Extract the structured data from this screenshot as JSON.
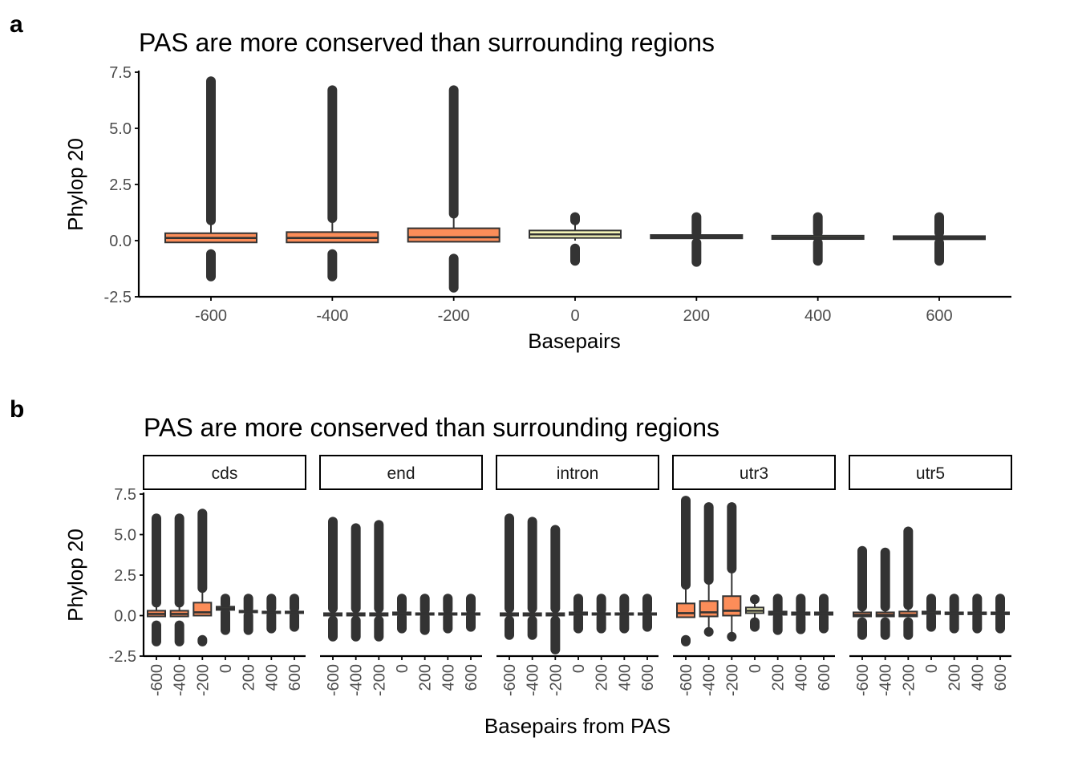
{
  "colors": {
    "outlier": "#333333",
    "box_stroke": "#333333",
    "axis": "#000000",
    "fills": [
      "#fc8d59",
      "#fdae61",
      "#fee08b",
      "#ffffbf",
      "#e6f598"
    ]
  },
  "chart_data": [
    {
      "id": "a",
      "type": "box",
      "panel_letter": "a",
      "title": "PAS are more conserved than surrounding regions",
      "xlabel": "Basepairs",
      "ylabel": "Phylop 20",
      "ylim": [
        -2.5,
        7.5
      ],
      "yticks": [
        -2.5,
        0,
        2.5,
        5,
        7.5
      ],
      "ytick_labels": [
        "-2.5",
        "0.0",
        "2.5",
        "5.0",
        "7.5"
      ],
      "xticks": [
        -600,
        -400,
        -200,
        0,
        200,
        400,
        600
      ],
      "xtick_labels": [
        "-600",
        "-400",
        "-200",
        "0",
        "200",
        "400",
        "600"
      ],
      "boxes": [
        {
          "x": -600,
          "q1": -0.08,
          "median": 0.12,
          "q3": 0.33,
          "wlo": -0.08,
          "whi": 0.9,
          "out_lo_min": -1.6,
          "out_lo_max": -0.6,
          "out_hi_min": 0.9,
          "out_hi_max": 7.1,
          "fill": "#fc8d59"
        },
        {
          "x": -400,
          "q1": -0.08,
          "median": 0.12,
          "q3": 0.38,
          "wlo": -0.08,
          "whi": 1.0,
          "out_lo_min": -1.6,
          "out_lo_max": -0.6,
          "out_hi_min": 1.0,
          "out_hi_max": 6.7,
          "fill": "#fc8d59"
        },
        {
          "x": -200,
          "q1": -0.05,
          "median": 0.15,
          "q3": 0.55,
          "wlo": -0.05,
          "whi": 1.2,
          "out_lo_min": -2.1,
          "out_lo_max": -0.8,
          "out_hi_min": 1.2,
          "out_hi_max": 6.7,
          "fill": "#fc8d59"
        },
        {
          "x": 0,
          "q1": 0.12,
          "median": 0.28,
          "q3": 0.45,
          "wlo": 0.0,
          "whi": 0.85,
          "out_lo_min": -0.9,
          "out_lo_max": -0.35,
          "out_hi_min": 0.9,
          "out_hi_max": 1.05,
          "fill": "#ffffbf"
        },
        {
          "x": 200,
          "q1": 0.1,
          "median": 0.17,
          "q3": 0.25,
          "wlo": 0.1,
          "whi": 0.25,
          "out_lo_min": -0.95,
          "out_lo_max": -0.1,
          "out_hi_min": 0.35,
          "out_hi_max": 1.05,
          "fill": "#e6f598"
        },
        {
          "x": 400,
          "q1": 0.07,
          "median": 0.14,
          "q3": 0.22,
          "wlo": 0.07,
          "whi": 0.22,
          "out_lo_min": -0.9,
          "out_lo_max": -0.1,
          "out_hi_min": 0.35,
          "out_hi_max": 1.05,
          "fill": "#e6f598"
        },
        {
          "x": 600,
          "q1": 0.06,
          "median": 0.13,
          "q3": 0.2,
          "wlo": 0.06,
          "whi": 0.2,
          "out_lo_min": -0.9,
          "out_lo_max": -0.1,
          "out_hi_min": 0.35,
          "out_hi_max": 1.05,
          "fill": "#e6f598"
        }
      ]
    },
    {
      "id": "b",
      "type": "box",
      "panel_letter": "b",
      "title": "PAS are more conserved than surrounding regions",
      "xlabel": "Basepairs from PAS",
      "ylabel": "Phylop 20",
      "ylim": [
        -2.5,
        7.5
      ],
      "yticks": [
        -2.5,
        0,
        2.5,
        5,
        7.5
      ],
      "ytick_labels": [
        "-2.5",
        "0.0",
        "2.5",
        "5.0",
        "7.5"
      ],
      "xticks": [
        -600,
        -400,
        -200,
        0,
        200,
        400,
        600
      ],
      "xtick_labels": [
        "-600",
        "-400",
        "-200",
        "0",
        "200",
        "400",
        "600"
      ],
      "facets": [
        {
          "label": "cds",
          "boxes": [
            {
              "x": -600,
              "q1": -0.05,
              "median": 0.1,
              "q3": 0.3,
              "wlo": -0.05,
              "whi": 0.8,
              "out_lo_min": -1.6,
              "out_lo_max": -0.6,
              "out_hi_min": 0.8,
              "out_hi_max": 6.0,
              "fill": "#fc8d59"
            },
            {
              "x": -400,
              "q1": -0.05,
              "median": 0.1,
              "q3": 0.3,
              "wlo": -0.05,
              "whi": 0.8,
              "out_lo_min": -1.6,
              "out_lo_max": -0.6,
              "out_hi_min": 0.8,
              "out_hi_max": 6.0,
              "fill": "#fc8d59"
            },
            {
              "x": -200,
              "q1": 0.0,
              "median": 0.2,
              "q3": 0.8,
              "wlo": 0.0,
              "whi": 1.7,
              "out_lo_min": -1.6,
              "out_lo_max": -1.5,
              "out_hi_min": 1.7,
              "out_hi_max": 6.3,
              "fill": "#fc8d59"
            },
            {
              "x": 0,
              "q1": 0.35,
              "median": 0.45,
              "q3": 0.55,
              "wlo": 0.35,
              "whi": 0.55,
              "out_lo_min": -0.9,
              "out_lo_max": 0.2,
              "out_hi_min": 0.7,
              "out_hi_max": 1.05,
              "fill": "#ffffbf"
            },
            {
              "x": 200,
              "q1": 0.2,
              "median": 0.25,
              "q3": 0.3,
              "wlo": 0.2,
              "whi": 0.3,
              "out_lo_min": -0.9,
              "out_lo_max": 0.0,
              "out_hi_min": 0.45,
              "out_hi_max": 1.05,
              "fill": "#e6f598"
            },
            {
              "x": 400,
              "q1": 0.15,
              "median": 0.2,
              "q3": 0.25,
              "wlo": 0.15,
              "whi": 0.25,
              "out_lo_min": -0.8,
              "out_lo_max": 0.0,
              "out_hi_min": 0.45,
              "out_hi_max": 1.05,
              "fill": "#e6f598"
            },
            {
              "x": 600,
              "q1": 0.15,
              "median": 0.2,
              "q3": 0.25,
              "wlo": 0.15,
              "whi": 0.25,
              "out_lo_min": -0.7,
              "out_lo_max": 0.0,
              "out_hi_min": 0.45,
              "out_hi_max": 1.05,
              "fill": "#e6f598"
            }
          ]
        },
        {
          "label": "end",
          "boxes": [
            {
              "x": -600,
              "q1": 0.0,
              "median": 0.05,
              "q3": 0.15,
              "wlo": 0.0,
              "whi": 0.4,
              "out_lo_min": -1.3,
              "out_lo_max": -0.3,
              "out_hi_min": 0.45,
              "out_hi_max": 5.8,
              "fill": "#fc8d59"
            },
            {
              "x": -400,
              "q1": 0.0,
              "median": 0.05,
              "q3": 0.15,
              "wlo": 0.0,
              "whi": 0.4,
              "out_lo_min": -1.3,
              "out_lo_max": -0.3,
              "out_hi_min": 0.45,
              "out_hi_max": 5.4,
              "fill": "#fc8d59"
            },
            {
              "x": -200,
              "q1": 0.0,
              "median": 0.05,
              "q3": 0.15,
              "wlo": 0.0,
              "whi": 0.4,
              "out_lo_min": -1.3,
              "out_lo_max": -0.3,
              "out_hi_min": 0.45,
              "out_hi_max": 5.6,
              "fill": "#fc8d59"
            },
            {
              "x": 0,
              "q1": 0.05,
              "median": 0.1,
              "q3": 0.2,
              "wlo": 0.05,
              "whi": 0.2,
              "out_lo_min": -0.8,
              "out_lo_max": -0.1,
              "out_hi_min": 0.35,
              "out_hi_max": 1.05,
              "fill": "#ffffbf"
            },
            {
              "x": 200,
              "q1": 0.05,
              "median": 0.1,
              "q3": 0.15,
              "wlo": 0.05,
              "whi": 0.15,
              "out_lo_min": -0.9,
              "out_lo_max": -0.1,
              "out_hi_min": 0.35,
              "out_hi_max": 1.05,
              "fill": "#e6f598"
            },
            {
              "x": 400,
              "q1": 0.05,
              "median": 0.1,
              "q3": 0.15,
              "wlo": 0.05,
              "whi": 0.15,
              "out_lo_min": -0.8,
              "out_lo_max": -0.1,
              "out_hi_min": 0.35,
              "out_hi_max": 1.05,
              "fill": "#e6f598"
            },
            {
              "x": 600,
              "q1": 0.05,
              "median": 0.1,
              "q3": 0.15,
              "wlo": 0.05,
              "whi": 0.15,
              "out_lo_min": -0.7,
              "out_lo_max": -0.1,
              "out_hi_min": 0.35,
              "out_hi_max": 1.05,
              "fill": "#e6f598"
            }
          ]
        },
        {
          "label": "intron",
          "boxes": [
            {
              "x": -600,
              "q1": 0.0,
              "median": 0.05,
              "q3": 0.15,
              "wlo": 0.0,
              "whi": 0.4,
              "out_lo_min": -1.2,
              "out_lo_max": -0.3,
              "out_hi_min": 0.45,
              "out_hi_max": 6.0,
              "fill": "#fc8d59"
            },
            {
              "x": -400,
              "q1": 0.0,
              "median": 0.05,
              "q3": 0.15,
              "wlo": 0.0,
              "whi": 0.4,
              "out_lo_min": -1.2,
              "out_lo_max": -0.3,
              "out_hi_min": 0.45,
              "out_hi_max": 5.8,
              "fill": "#fc8d59"
            },
            {
              "x": -200,
              "q1": 0.0,
              "median": 0.05,
              "q3": 0.15,
              "wlo": 0.0,
              "whi": 0.4,
              "out_lo_min": -2.1,
              "out_lo_max": -0.3,
              "out_hi_min": 0.45,
              "out_hi_max": 5.3,
              "fill": "#fc8d59"
            },
            {
              "x": 0,
              "q1": 0.05,
              "median": 0.1,
              "q3": 0.2,
              "wlo": 0.05,
              "whi": 0.2,
              "out_lo_min": -0.8,
              "out_lo_max": -0.1,
              "out_hi_min": 0.35,
              "out_hi_max": 1.05,
              "fill": "#ffffbf"
            },
            {
              "x": 200,
              "q1": 0.05,
              "median": 0.1,
              "q3": 0.15,
              "wlo": 0.05,
              "whi": 0.15,
              "out_lo_min": -0.8,
              "out_lo_max": -0.1,
              "out_hi_min": 0.35,
              "out_hi_max": 1.05,
              "fill": "#e6f598"
            },
            {
              "x": 400,
              "q1": 0.05,
              "median": 0.1,
              "q3": 0.15,
              "wlo": 0.05,
              "whi": 0.15,
              "out_lo_min": -0.8,
              "out_lo_max": -0.1,
              "out_hi_min": 0.35,
              "out_hi_max": 1.05,
              "fill": "#e6f598"
            },
            {
              "x": 600,
              "q1": 0.05,
              "median": 0.1,
              "q3": 0.15,
              "wlo": 0.05,
              "whi": 0.15,
              "out_lo_min": -0.7,
              "out_lo_max": -0.1,
              "out_hi_min": 0.35,
              "out_hi_max": 1.05,
              "fill": "#e6f598"
            }
          ]
        },
        {
          "label": "utr3",
          "boxes": [
            {
              "x": -600,
              "q1": -0.1,
              "median": 0.15,
              "q3": 0.75,
              "wlo": -0.1,
              "whi": 1.9,
              "out_lo_min": -1.6,
              "out_lo_max": -1.5,
              "out_hi_min": 1.9,
              "out_hi_max": 7.1,
              "fill": "#fc8d59"
            },
            {
              "x": -400,
              "q1": -0.05,
              "median": 0.2,
              "q3": 0.9,
              "wlo": -1.0,
              "whi": 2.2,
              "out_lo_min": -1.0,
              "out_lo_max": -1.0,
              "out_hi_min": 2.2,
              "out_hi_max": 6.7,
              "fill": "#fc8d59"
            },
            {
              "x": -200,
              "q1": 0.0,
              "median": 0.3,
              "q3": 1.2,
              "wlo": -1.3,
              "whi": 2.9,
              "out_lo_min": -1.3,
              "out_lo_max": -1.3,
              "out_hi_min": 2.9,
              "out_hi_max": 6.7,
              "fill": "#fc8d59"
            },
            {
              "x": 0,
              "q1": 0.15,
              "median": 0.3,
              "q3": 0.5,
              "wlo": -0.25,
              "whi": 0.9,
              "out_lo_min": -0.7,
              "out_lo_max": -0.4,
              "out_hi_min": 1.0,
              "out_hi_max": 1.0,
              "fill": "#ffffbf"
            },
            {
              "x": 200,
              "q1": 0.05,
              "median": 0.15,
              "q3": 0.25,
              "wlo": 0.05,
              "whi": 0.25,
              "out_lo_min": -0.9,
              "out_lo_max": -0.1,
              "out_hi_min": 0.35,
              "out_hi_max": 1.05,
              "fill": "#e6f598"
            },
            {
              "x": 400,
              "q1": 0.05,
              "median": 0.12,
              "q3": 0.2,
              "wlo": 0.05,
              "whi": 0.2,
              "out_lo_min": -0.85,
              "out_lo_max": -0.1,
              "out_hi_min": 0.35,
              "out_hi_max": 1.05,
              "fill": "#e6f598"
            },
            {
              "x": 600,
              "q1": 0.05,
              "median": 0.12,
              "q3": 0.2,
              "wlo": 0.05,
              "whi": 0.2,
              "out_lo_min": -0.8,
              "out_lo_max": -0.1,
              "out_hi_min": 0.35,
              "out_hi_max": 1.05,
              "fill": "#e6f598"
            }
          ]
        },
        {
          "label": "utr5",
          "boxes": [
            {
              "x": -600,
              "q1": -0.05,
              "median": 0.05,
              "q3": 0.2,
              "wlo": -0.05,
              "whi": 0.5,
              "out_lo_min": -1.2,
              "out_lo_max": -0.4,
              "out_hi_min": 0.55,
              "out_hi_max": 4.0,
              "fill": "#fc8d59"
            },
            {
              "x": -400,
              "q1": -0.05,
              "median": 0.05,
              "q3": 0.2,
              "wlo": -0.05,
              "whi": 0.5,
              "out_lo_min": -1.2,
              "out_lo_max": -0.4,
              "out_hi_min": 0.55,
              "out_hi_max": 3.9,
              "fill": "#fc8d59"
            },
            {
              "x": -200,
              "q1": -0.05,
              "median": 0.05,
              "q3": 0.25,
              "wlo": -0.05,
              "whi": 0.6,
              "out_lo_min": -1.2,
              "out_lo_max": -0.4,
              "out_hi_min": 0.65,
              "out_hi_max": 5.2,
              "fill": "#fc8d59"
            },
            {
              "x": 0,
              "q1": 0.1,
              "median": 0.15,
              "q3": 0.25,
              "wlo": 0.1,
              "whi": 0.25,
              "out_lo_min": -0.7,
              "out_lo_max": -0.05,
              "out_hi_min": 0.4,
              "out_hi_max": 1.05,
              "fill": "#ffffbf"
            },
            {
              "x": 200,
              "q1": 0.08,
              "median": 0.12,
              "q3": 0.2,
              "wlo": 0.08,
              "whi": 0.2,
              "out_lo_min": -0.8,
              "out_lo_max": -0.05,
              "out_hi_min": 0.35,
              "out_hi_max": 1.05,
              "fill": "#e6f598"
            },
            {
              "x": 400,
              "q1": 0.08,
              "median": 0.12,
              "q3": 0.2,
              "wlo": 0.08,
              "whi": 0.2,
              "out_lo_min": -0.8,
              "out_lo_max": -0.05,
              "out_hi_min": 0.35,
              "out_hi_max": 1.05,
              "fill": "#e6f598"
            },
            {
              "x": 600,
              "q1": 0.08,
              "median": 0.12,
              "q3": 0.2,
              "wlo": 0.08,
              "whi": 0.2,
              "out_lo_min": -0.8,
              "out_lo_max": -0.05,
              "out_hi_min": 0.35,
              "out_hi_max": 1.05,
              "fill": "#e6f598"
            }
          ]
        }
      ]
    }
  ]
}
